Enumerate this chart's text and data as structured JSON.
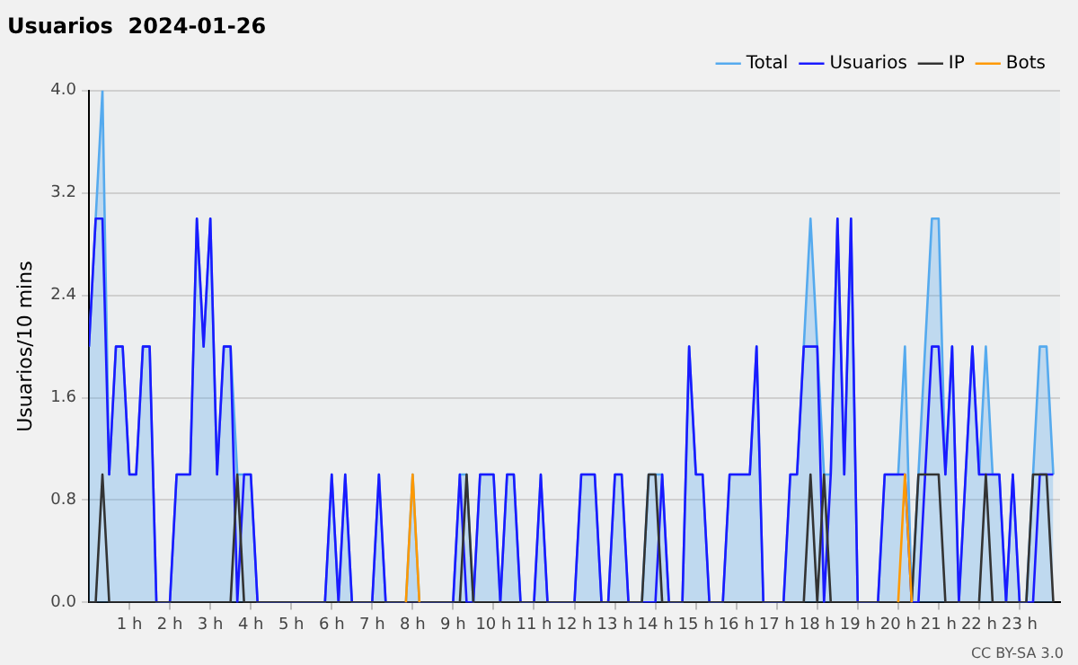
{
  "chart_data": {
    "type": "line",
    "title": "Usuarios  2024-01-26",
    "ylabel": "Usuarios/10 mins",
    "x": [
      0,
      0.1667,
      0.3333,
      0.5,
      0.6667,
      0.8333,
      1,
      1.1667,
      1.3333,
      1.5,
      1.6667,
      1.8333,
      2,
      2.1667,
      2.3333,
      2.5,
      2.6667,
      2.8333,
      3,
      3.1667,
      3.3333,
      3.5,
      3.6667,
      3.8333,
      4,
      4.1667,
      4.3333,
      4.5,
      4.6667,
      4.8333,
      5,
      5.1667,
      5.3333,
      5.5,
      5.6667,
      5.8333,
      6,
      6.1667,
      6.3333,
      6.5,
      6.6667,
      6.8333,
      7,
      7.1667,
      7.3333,
      7.5,
      7.6667,
      7.8333,
      8,
      8.1667,
      8.3333,
      8.5,
      8.6667,
      8.8333,
      9,
      9.1667,
      9.3333,
      9.5,
      9.6667,
      9.8333,
      10,
      10.1667,
      10.3333,
      10.5,
      10.6667,
      10.8333,
      11,
      11.1667,
      11.3333,
      11.5,
      11.6667,
      11.8333,
      12,
      12.1667,
      12.3333,
      12.5,
      12.6667,
      12.8333,
      13,
      13.1667,
      13.3333,
      13.5,
      13.6667,
      13.8333,
      14,
      14.1667,
      14.3333,
      14.5,
      14.6667,
      14.8333,
      15,
      15.1667,
      15.3333,
      15.5,
      15.6667,
      15.8333,
      16,
      16.1667,
      16.3333,
      16.5,
      16.6667,
      16.8333,
      17,
      17.1667,
      17.3333,
      17.5,
      17.6667,
      17.8333,
      18,
      18.1667,
      18.3333,
      18.5,
      18.6667,
      18.8333,
      19,
      19.1667,
      19.3333,
      19.5,
      19.6667,
      19.8333,
      20,
      20.1667,
      20.3333,
      20.5,
      20.6667,
      20.8333,
      21,
      21.1667,
      21.3333,
      21.5,
      21.6667,
      21.8333,
      22,
      22.1667,
      22.3333,
      22.5,
      22.6667,
      22.8333,
      23,
      23.1667,
      23.3333,
      23.5,
      23.6667,
      23.8333
    ],
    "series": [
      {
        "name": "Total",
        "type": "area",
        "color": "#55aaee",
        "values": [
          2,
          3,
          4,
          1,
          2,
          2,
          1,
          1,
          2,
          2,
          0,
          0,
          0,
          1,
          1,
          1,
          3,
          2,
          3,
          1,
          2,
          2,
          1,
          1,
          1,
          0,
          0,
          0,
          0,
          0,
          0,
          0,
          0,
          0,
          0,
          0,
          1,
          0,
          1,
          0,
          0,
          0,
          0,
          1,
          0,
          0,
          0,
          0,
          1,
          0,
          0,
          0,
          0,
          0,
          0,
          1,
          1,
          0,
          1,
          1,
          1,
          0,
          1,
          1,
          0,
          0,
          0,
          1,
          0,
          0,
          0,
          0,
          0,
          1,
          1,
          1,
          0,
          0,
          1,
          1,
          0,
          0,
          0,
          1,
          1,
          1,
          0,
          0,
          0,
          2,
          1,
          1,
          0,
          0,
          0,
          1,
          1,
          1,
          1,
          2,
          0,
          0,
          0,
          0,
          1,
          1,
          2,
          3,
          2,
          1,
          1,
          3,
          1,
          3,
          0,
          0,
          0,
          0,
          1,
          1,
          1,
          2,
          0,
          1,
          2,
          3,
          3,
          1,
          2,
          0,
          1,
          2,
          1,
          2,
          1,
          1,
          0,
          1,
          0,
          0,
          1,
          2,
          2,
          1
        ]
      },
      {
        "name": "Usuarios",
        "type": "line",
        "color": "#1a1aff",
        "values": [
          2,
          3,
          3,
          1,
          2,
          2,
          1,
          1,
          2,
          2,
          0,
          0,
          0,
          1,
          1,
          1,
          3,
          2,
          3,
          1,
          2,
          2,
          0,
          1,
          1,
          0,
          0,
          0,
          0,
          0,
          0,
          0,
          0,
          0,
          0,
          0,
          1,
          0,
          1,
          0,
          0,
          0,
          0,
          1,
          0,
          0,
          0,
          0,
          0,
          0,
          0,
          0,
          0,
          0,
          0,
          1,
          0,
          0,
          1,
          1,
          1,
          0,
          1,
          1,
          0,
          0,
          0,
          1,
          0,
          0,
          0,
          0,
          0,
          1,
          1,
          1,
          0,
          0,
          1,
          1,
          0,
          0,
          0,
          0,
          0,
          1,
          0,
          0,
          0,
          2,
          1,
          1,
          0,
          0,
          0,
          1,
          1,
          1,
          1,
          2,
          0,
          0,
          0,
          0,
          1,
          1,
          2,
          2,
          2,
          0,
          1,
          3,
          1,
          3,
          0,
          0,
          0,
          0,
          1,
          1,
          1,
          1,
          0,
          0,
          1,
          2,
          2,
          1,
          2,
          0,
          1,
          2,
          1,
          1,
          1,
          1,
          0,
          1,
          0,
          0,
          0,
          1,
          1,
          1
        ]
      },
      {
        "name": "IP",
        "type": "line",
        "color": "#333333",
        "values": [
          0,
          0,
          1,
          0,
          0,
          0,
          0,
          0,
          0,
          0,
          0,
          0,
          0,
          0,
          0,
          0,
          0,
          0,
          0,
          0,
          0,
          0,
          1,
          0,
          0,
          0,
          0,
          0,
          0,
          0,
          0,
          0,
          0,
          0,
          0,
          0,
          0,
          0,
          0,
          0,
          0,
          0,
          0,
          0,
          0,
          0,
          0,
          0,
          0,
          0,
          0,
          0,
          0,
          0,
          0,
          0,
          1,
          0,
          0,
          0,
          0,
          0,
          0,
          0,
          0,
          0,
          0,
          0,
          0,
          0,
          0,
          0,
          0,
          0,
          0,
          0,
          0,
          0,
          0,
          0,
          0,
          0,
          0,
          1,
          1,
          0,
          0,
          0,
          0,
          0,
          0,
          0,
          0,
          0,
          0,
          0,
          0,
          0,
          0,
          0,
          0,
          0,
          0,
          0,
          0,
          0,
          0,
          1,
          0,
          1,
          0,
          0,
          0,
          0,
          0,
          0,
          0,
          0,
          0,
          0,
          0,
          0,
          0,
          1,
          1,
          1,
          1,
          0,
          0,
          0,
          0,
          0,
          0,
          1,
          0,
          0,
          0,
          0,
          0,
          0,
          1,
          1,
          1,
          0
        ]
      },
      {
        "name": "Bots",
        "type": "line",
        "color": "#ff9900",
        "values": [
          null,
          null,
          null,
          null,
          null,
          null,
          null,
          null,
          null,
          null,
          null,
          null,
          null,
          null,
          null,
          null,
          null,
          null,
          null,
          null,
          null,
          null,
          null,
          null,
          null,
          null,
          null,
          null,
          null,
          null,
          null,
          null,
          null,
          null,
          null,
          null,
          null,
          null,
          null,
          null,
          null,
          null,
          null,
          null,
          null,
          null,
          null,
          0,
          1,
          0,
          null,
          null,
          null,
          null,
          null,
          null,
          null,
          null,
          null,
          null,
          null,
          null,
          null,
          null,
          null,
          null,
          null,
          null,
          null,
          null,
          null,
          null,
          null,
          null,
          null,
          null,
          null,
          null,
          null,
          null,
          null,
          null,
          null,
          null,
          null,
          null,
          null,
          null,
          null,
          null,
          null,
          null,
          null,
          null,
          null,
          null,
          null,
          null,
          null,
          null,
          null,
          null,
          null,
          null,
          null,
          null,
          null,
          null,
          null,
          null,
          null,
          null,
          null,
          null,
          null,
          null,
          null,
          null,
          null,
          null,
          0,
          1,
          0,
          null,
          null,
          null,
          null,
          null,
          null,
          null,
          null,
          null,
          null,
          null,
          null,
          null,
          null,
          null,
          null,
          null,
          null,
          null,
          null,
          null
        ]
      }
    ],
    "xlim": [
      0,
      24
    ],
    "xticks": [
      {
        "value": 1,
        "label": "1 h"
      },
      {
        "value": 2,
        "label": "2 h"
      },
      {
        "value": 3,
        "label": "3 h"
      },
      {
        "value": 4,
        "label": "4 h"
      },
      {
        "value": 5,
        "label": "5 h"
      },
      {
        "value": 6,
        "label": "6 h"
      },
      {
        "value": 7,
        "label": "7 h"
      },
      {
        "value": 8,
        "label": "8 h"
      },
      {
        "value": 9,
        "label": "9 h"
      },
      {
        "value": 10,
        "label": "10 h"
      },
      {
        "value": 11,
        "label": "11 h"
      },
      {
        "value": 12,
        "label": "12 h"
      },
      {
        "value": 13,
        "label": "13 h"
      },
      {
        "value": 14,
        "label": "14 h"
      },
      {
        "value": 15,
        "label": "15 h"
      },
      {
        "value": 16,
        "label": "16 h"
      },
      {
        "value": 17,
        "label": "17 h"
      },
      {
        "value": 18,
        "label": "18 h"
      },
      {
        "value": 19,
        "label": "19 h"
      },
      {
        "value": 20,
        "label": "20 h"
      },
      {
        "value": 21,
        "label": "21 h"
      },
      {
        "value": 22,
        "label": "22 h"
      },
      {
        "value": 23,
        "label": "23 h"
      }
    ],
    "ylim": [
      0,
      4
    ],
    "yticks": [
      {
        "value": 0,
        "label": "0.0"
      },
      {
        "value": 0.8,
        "label": "0.8"
      },
      {
        "value": 1.6,
        "label": "1.6"
      },
      {
        "value": 2.4,
        "label": "2.4"
      },
      {
        "value": 3.2,
        "label": "3.2"
      },
      {
        "value": 4,
        "label": "4.0"
      }
    ],
    "grid": "y",
    "legend": "top right",
    "marker": "none",
    "annotations": [
      "CC BY-SA 3.0"
    ]
  }
}
